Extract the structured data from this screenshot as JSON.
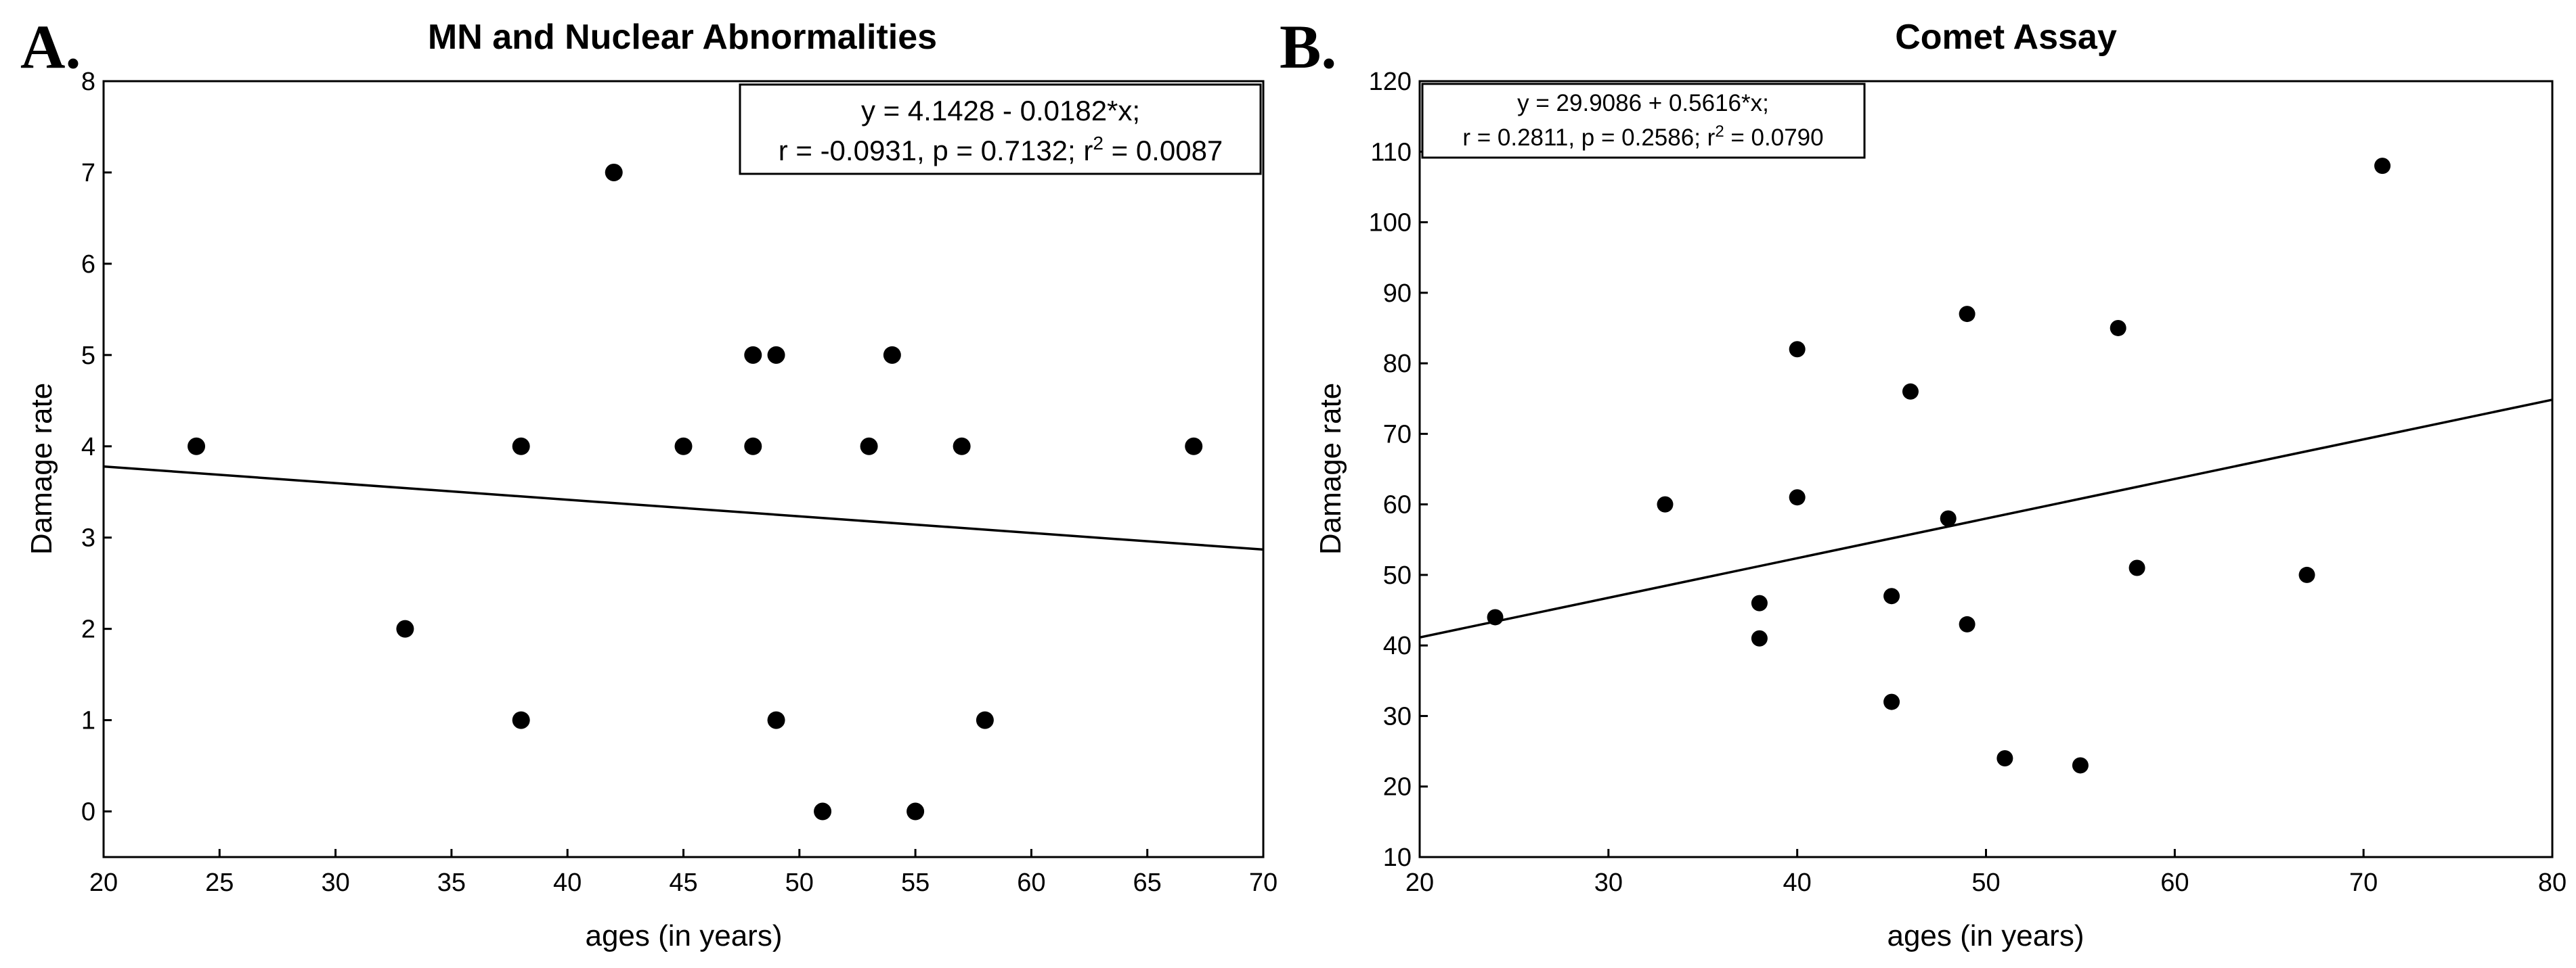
{
  "chart_data": [
    {
      "panel_label": "A.",
      "type": "scatter",
      "title": "MN and Nuclear Abnormalities",
      "xlabel": "ages (in years)",
      "ylabel": "Damage rate",
      "xlim": [
        20,
        70
      ],
      "ylim": [
        -0.5,
        8
      ],
      "xticks": [
        20,
        25,
        30,
        35,
        40,
        45,
        50,
        55,
        60,
        65,
        70
      ],
      "yticks": [
        0,
        1,
        2,
        3,
        4,
        5,
        6,
        7,
        8
      ],
      "grid": false,
      "points": [
        {
          "x": 24,
          "y": 4
        },
        {
          "x": 33,
          "y": 2
        },
        {
          "x": 38,
          "y": 4
        },
        {
          "x": 38,
          "y": 1
        },
        {
          "x": 42,
          "y": 7
        },
        {
          "x": 45,
          "y": 4
        },
        {
          "x": 48,
          "y": 5
        },
        {
          "x": 48,
          "y": 4
        },
        {
          "x": 49,
          "y": 5
        },
        {
          "x": 49,
          "y": 1
        },
        {
          "x": 51,
          "y": 0
        },
        {
          "x": 53,
          "y": 4
        },
        {
          "x": 54,
          "y": 5
        },
        {
          "x": 55,
          "y": 0
        },
        {
          "x": 57,
          "y": 4
        },
        {
          "x": 58,
          "y": 1
        },
        {
          "x": 67,
          "y": 4
        }
      ],
      "regression": {
        "intercept": 4.1428,
        "slope": -0.0182
      },
      "annotation": {
        "line1": "y = 4.1428 - 0.0182*x;",
        "line2": "r = -0.0931, p = 0.7132; r",
        "sup": "2",
        "line2_end": " = 0.0087",
        "position": "top-right"
      }
    },
    {
      "panel_label": "B.",
      "type": "scatter",
      "title": "Comet Assay",
      "xlabel": "ages (in years)",
      "ylabel": "Damage rate",
      "xlim": [
        20,
        80
      ],
      "ylim": [
        10,
        120
      ],
      "xticks": [
        20,
        30,
        40,
        50,
        60,
        70,
        80
      ],
      "yticks": [
        10,
        20,
        30,
        40,
        50,
        60,
        70,
        80,
        90,
        100,
        110,
        120
      ],
      "grid": false,
      "points": [
        {
          "x": 24,
          "y": 44
        },
        {
          "x": 33,
          "y": 60
        },
        {
          "x": 38,
          "y": 46
        },
        {
          "x": 38,
          "y": 41
        },
        {
          "x": 40,
          "y": 82
        },
        {
          "x": 40,
          "y": 61
        },
        {
          "x": 45,
          "y": 47
        },
        {
          "x": 45,
          "y": 32
        },
        {
          "x": 46,
          "y": 76
        },
        {
          "x": 48,
          "y": 58
        },
        {
          "x": 49,
          "y": 87
        },
        {
          "x": 49,
          "y": 43
        },
        {
          "x": 51,
          "y": 24
        },
        {
          "x": 55,
          "y": 23
        },
        {
          "x": 57,
          "y": 85
        },
        {
          "x": 58,
          "y": 51
        },
        {
          "x": 67,
          "y": 50
        },
        {
          "x": 71,
          "y": 108
        }
      ],
      "regression": {
        "intercept": 29.9086,
        "slope": 0.5616
      },
      "annotation": {
        "line1": "y = 29.9086 + 0.5616*x;",
        "line2": "r = 0.2811, p = 0.2586; r",
        "sup": "2",
        "line2_end": " = 0.0790",
        "position": "top-left"
      }
    }
  ]
}
